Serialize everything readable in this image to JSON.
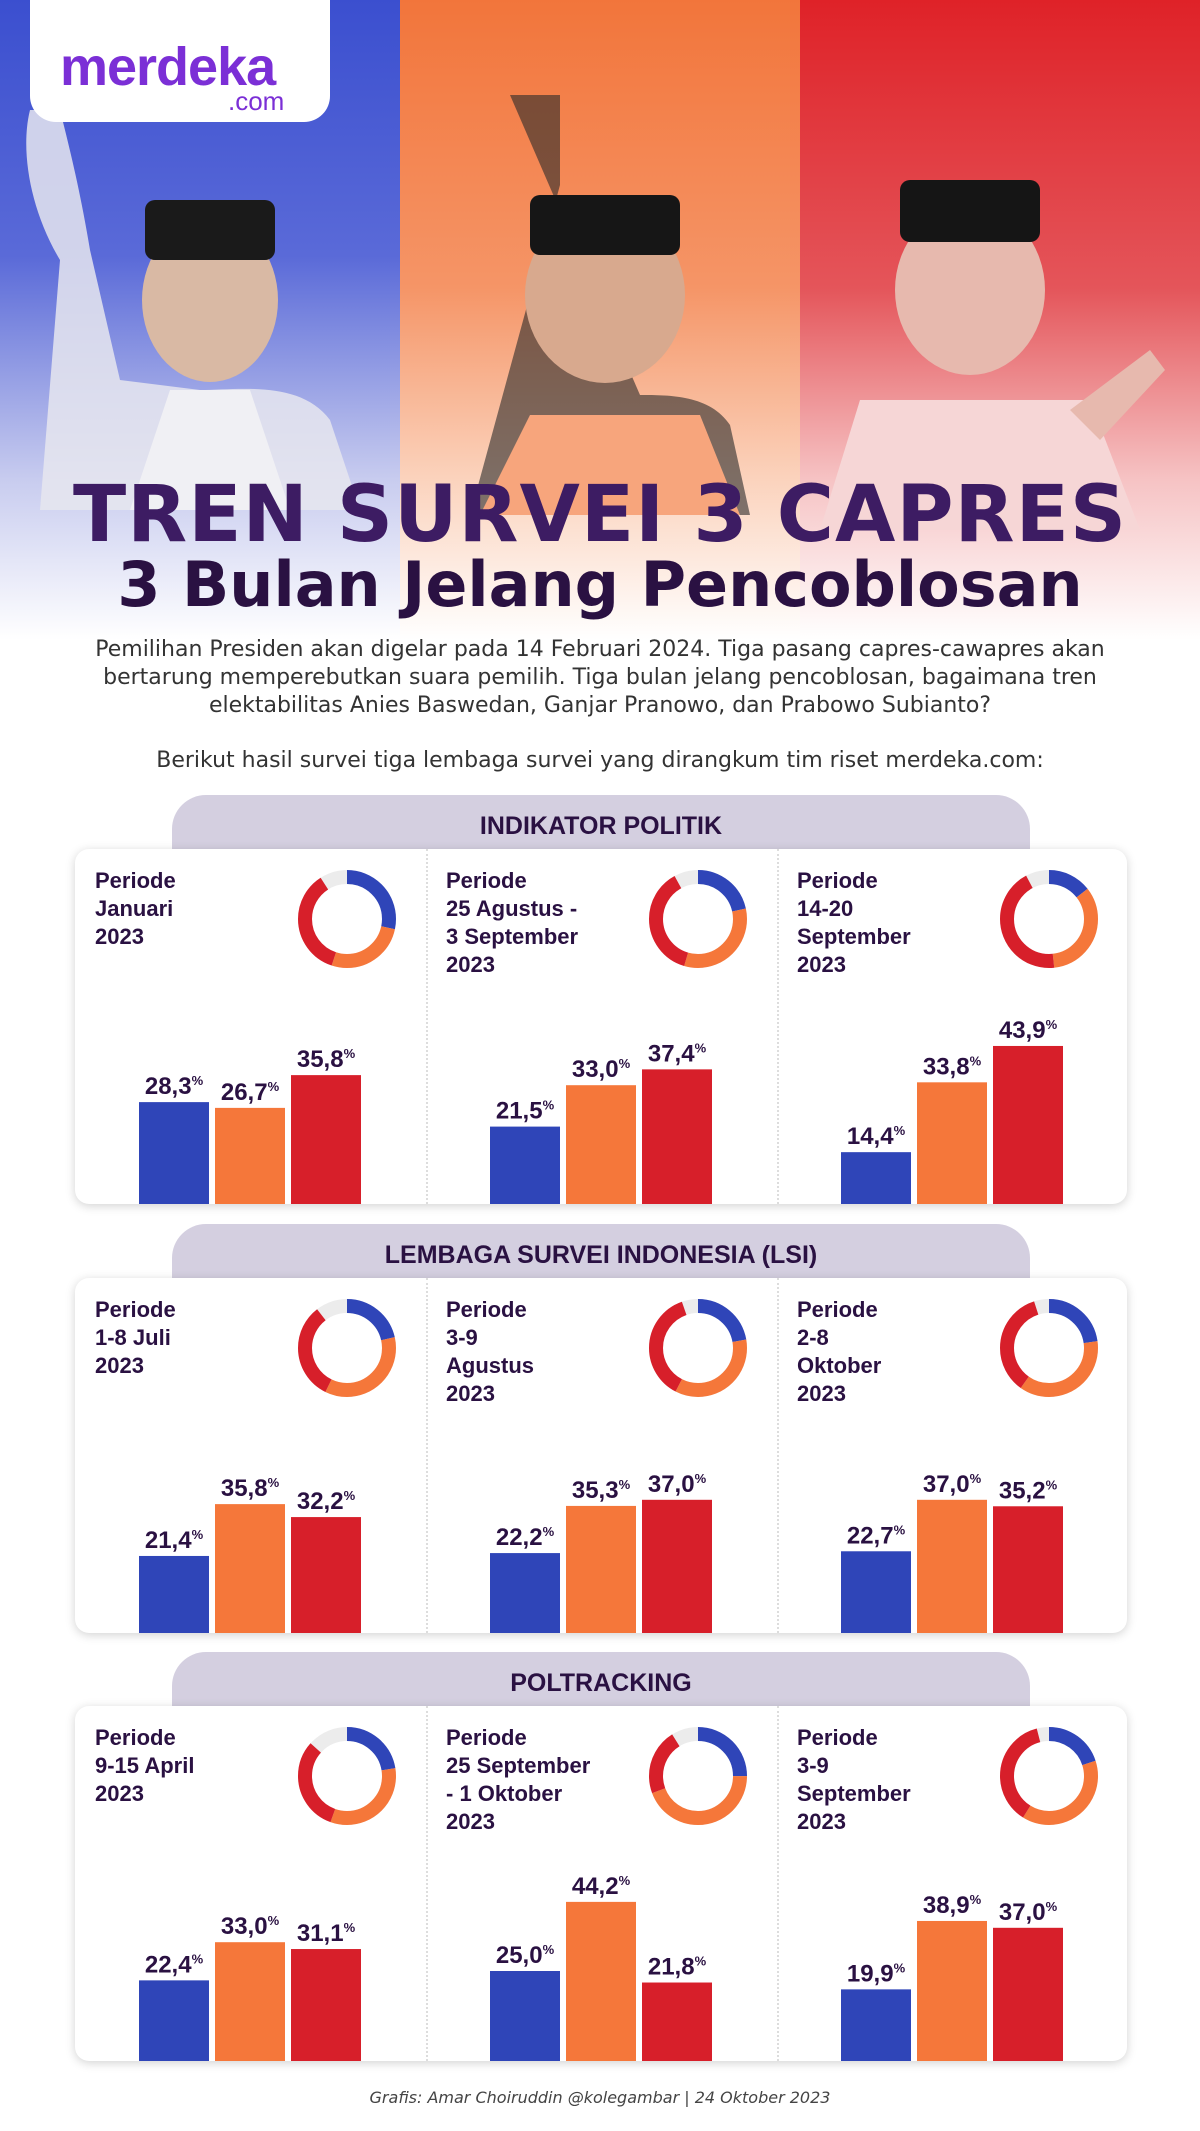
{
  "brand": {
    "logo_main": "merdeka",
    "logo_sub": ".com"
  },
  "colors": {
    "anies": "#2f45b8",
    "prabowo": "#f5773a",
    "ganjar": "#d71f2a",
    "title": "#3d1c63"
  },
  "title_line1": "TREN SURVEI 3 CAPRES",
  "title_line2": "3 Bulan Jelang Pencoblosan",
  "intro": "Pemilihan Presiden akan digelar pada 14 Februari 2024. Tiga pasang capres-cawapres akan bertarung memperebutkan suara pemilih. Tiga bulan jelang pencoblosan, bagaimana tren elektabilitas Anies Baswedan, Ganjar Pranowo, dan Prabowo Subianto?",
  "intro2": "Berikut hasil survei tiga lembaga survei yang dirangkum tim riset merdeka.com:",
  "credit": "Grafis: Amar Choiruddin @kolegambar | 24 Oktober 2023",
  "chart_data": [
    {
      "type": "bar",
      "title": "INDIKATOR POLITIK",
      "panels": [
        {
          "period": "Periode\nJanuari\n2023",
          "values": [
            28.3,
            26.7,
            35.8
          ],
          "labels": [
            "28,3",
            "26,7",
            "35,8"
          ]
        },
        {
          "period": "Periode\n25 Agustus -\n3 September\n2023",
          "values": [
            21.5,
            33.0,
            37.4
          ],
          "labels": [
            "21,5",
            "33,0",
            "37,4"
          ]
        },
        {
          "period": "Periode\n14-20\nSeptember\n2023",
          "values": [
            14.4,
            33.8,
            43.9
          ],
          "labels": [
            "14,4",
            "33,8",
            "43,9"
          ]
        }
      ]
    },
    {
      "type": "bar",
      "title": "LEMBAGA SURVEI INDONESIA (LSI)",
      "panels": [
        {
          "period": "Periode\n1-8 Juli\n2023",
          "values": [
            21.4,
            35.8,
            32.2
          ],
          "labels": [
            "21,4",
            "35,8",
            "32,2"
          ]
        },
        {
          "period": "Periode\n3-9\nAgustus\n2023",
          "values": [
            22.2,
            35.3,
            37.0
          ],
          "labels": [
            "22,2",
            "35,3",
            "37,0"
          ]
        },
        {
          "period": "Periode\n2-8\nOktober\n2023",
          "values": [
            22.7,
            37.0,
            35.2
          ],
          "labels": [
            "22,7",
            "37,0",
            "35,2"
          ]
        }
      ]
    },
    {
      "type": "bar",
      "title": "POLTRACKING",
      "panels": [
        {
          "period": "Periode\n9-15 April\n2023",
          "values": [
            22.4,
            33.0,
            31.1
          ],
          "labels": [
            "22,4",
            "33,0",
            "31,1"
          ]
        },
        {
          "period": "Periode\n25 September\n- 1 Oktober\n2023",
          "values": [
            25.0,
            44.2,
            21.8
          ],
          "labels": [
            "25,0",
            "44,2",
            "21,8"
          ]
        },
        {
          "period": "Periode\n3-9\nSeptember\n2023",
          "values": [
            19.9,
            38.9,
            37.0
          ],
          "labels": [
            "19,9",
            "38,9",
            "37,0"
          ]
        }
      ]
    }
  ]
}
